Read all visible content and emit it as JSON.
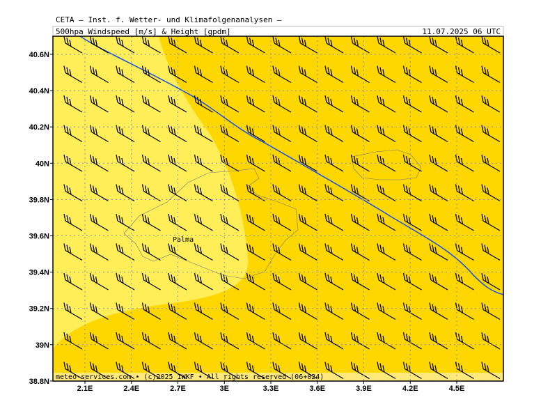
{
  "header": {
    "title": "CETA – Inst. f. Wetter- und Klimafolgenanalysen –",
    "subtitle": "500hpa Windspeed [m/s] & Height [gpdm]",
    "datetime": "11.07.2025 06 UTC"
  },
  "y_axis_labels": [
    "40.6N",
    "40.4N",
    "40.2N",
    "40N",
    "39.8N",
    "39.6N",
    "39.4N",
    "39.2N",
    "39N",
    "38.8N"
  ],
  "x_axis_labels": [
    "2.1E",
    "2.4E",
    "2.7E",
    "3E",
    "3.3E",
    "3.6E",
    "3.9E",
    "4.2E",
    "4.5E"
  ],
  "places": [
    "Palma"
  ],
  "footer": "meteo-services.com • (c)2025 IWKF • All rights reserved (06+024)"
}
